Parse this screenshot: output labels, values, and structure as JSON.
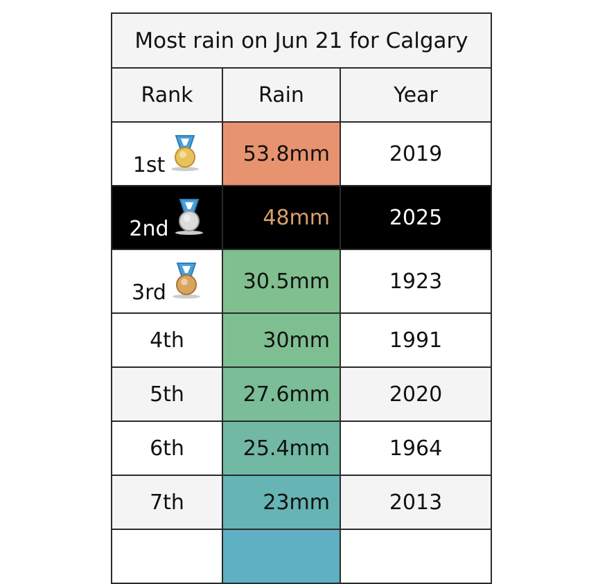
{
  "table": {
    "title": "Most rain on Jun 21 for Calgary",
    "headers": [
      "Rank",
      "Rain",
      "Year"
    ],
    "rows": [
      {
        "rank": "1st",
        "rain": "53.8mm",
        "year": 2019,
        "color": "#e8936f"
      },
      {
        "rank": "2nd",
        "rain": "48mm",
        "year": 2025,
        "color": "#000000"
      },
      {
        "rank": "3rd",
        "rain": "30.5mm",
        "year": 1923,
        "color": "#80bf8e"
      },
      {
        "rank": "4th",
        "rain": "30mm",
        "year": 1991,
        "color": "#7ebf91"
      },
      {
        "rank": "5th",
        "rain": "27.6mm",
        "year": 2020,
        "color": "#7abd97"
      },
      {
        "rank": "6th",
        "rain": "25.4mm",
        "year": 1964,
        "color": "#71b9a2"
      },
      {
        "rank": "7th",
        "rain": "23mm",
        "year": 2013,
        "color": "#66b4b4"
      }
    ]
  }
}
